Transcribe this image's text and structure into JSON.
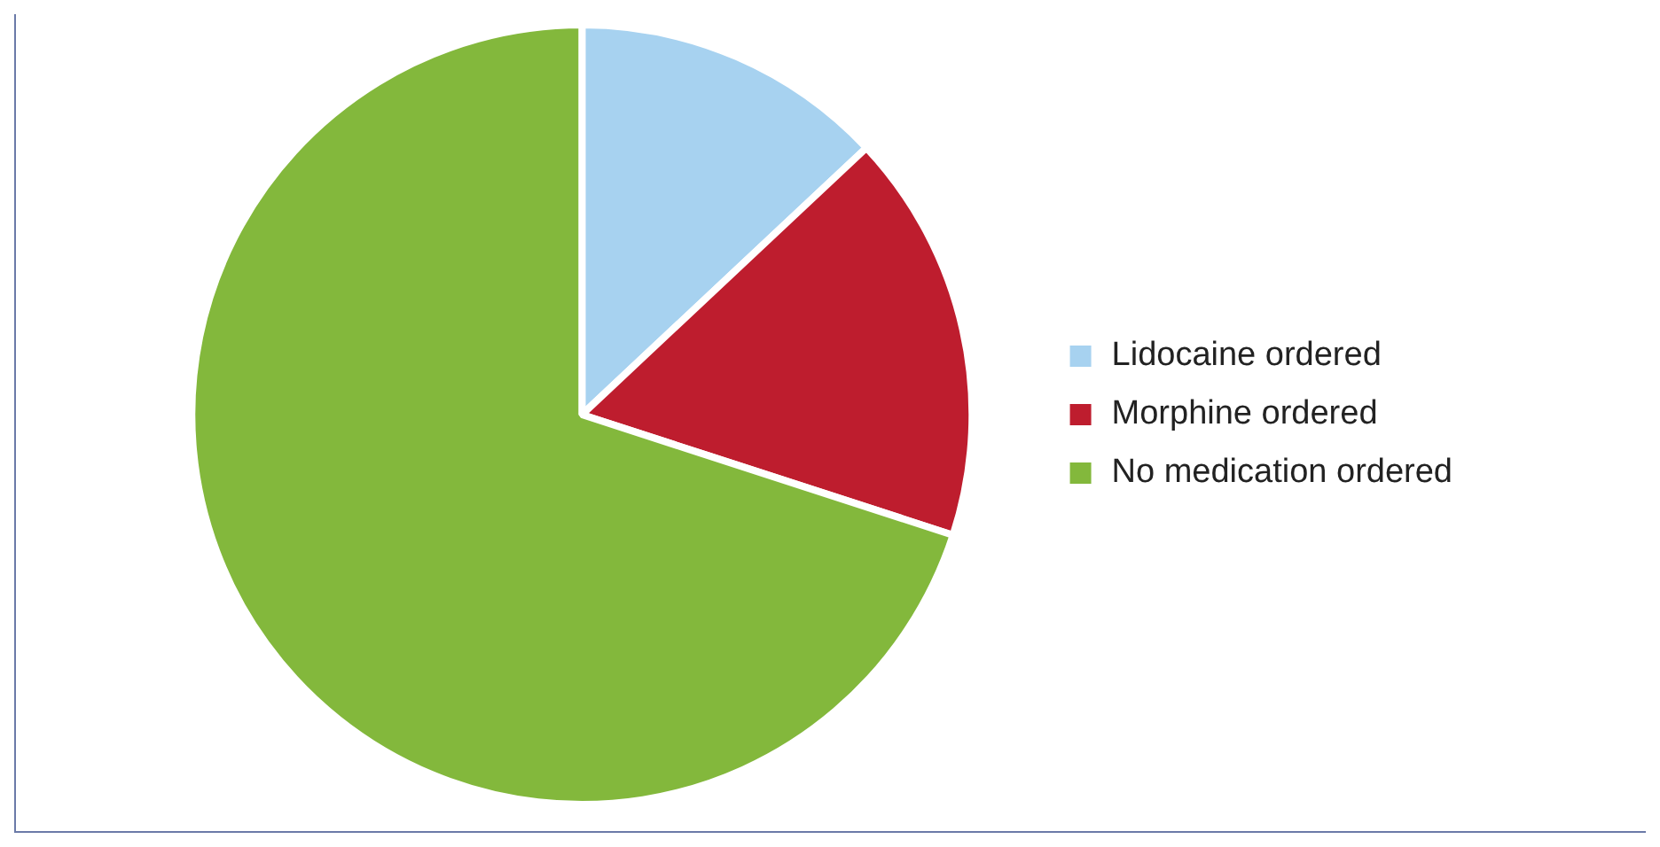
{
  "chart_data": {
    "type": "pie",
    "categories": [
      "Lidocaine ordered",
      "Morphine ordered",
      "No medication ordered"
    ],
    "values": [
      13,
      17,
      70
    ],
    "colors": [
      "#a7d2f0",
      "#be1d2e",
      "#83b83c"
    ],
    "legend": "right"
  }
}
